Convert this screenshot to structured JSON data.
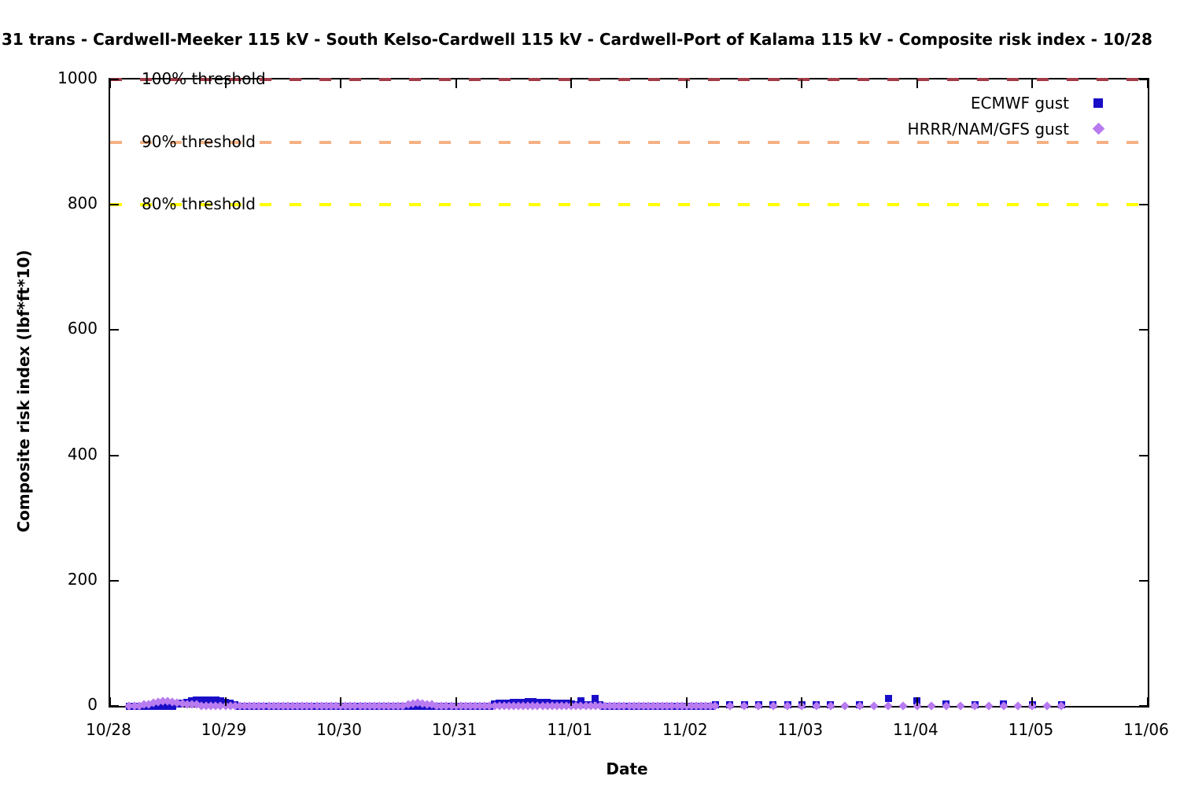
{
  "title": "31 trans - Cardwell-Meeker 115 kV - South Kelso-Cardwell 115 kV - Cardwell-Port of Kalama 115 kV - Composite risk index - 10/28",
  "colors": {
    "axis": "#000000",
    "threshold_100": "#A33B47",
    "threshold_90": "#F5B183",
    "threshold_80": "#FFFF00",
    "ecmwf": "#1A0DC8",
    "hrrr": "#B87BF0"
  },
  "chart_data": {
    "type": "scatter",
    "title": "31 trans - Cardwell-Meeker 115 kV - South Kelso-Cardwell 115 kV - Cardwell-Port of Kalama 115 kV - Composite risk index - 10/28",
    "xlabel": "Date",
    "ylabel": "Composite risk index (lbf*ft*10)",
    "x_tick_labels": [
      "10/28",
      "10/29",
      "10/30",
      "10/31",
      "11/01",
      "11/02",
      "11/03",
      "11/04",
      "11/05",
      "11/06"
    ],
    "y_tick_labels": [
      "0",
      "200",
      "400",
      "600",
      "800",
      "1000"
    ],
    "y_tick_values": [
      0,
      200,
      400,
      600,
      800,
      1000
    ],
    "ylim": [
      0,
      1000
    ],
    "x_range_hours": [
      0,
      216
    ],
    "grid": false,
    "legend_position": "top-right-inside",
    "thresholds": [
      {
        "label": "100% threshold",
        "value": 1000,
        "color": "#A33B47"
      },
      {
        "label": "90% threshold",
        "value": 900,
        "color": "#F5B183"
      },
      {
        "label": "80% threshold",
        "value": 800,
        "color": "#FFFF00"
      }
    ],
    "series": [
      {
        "name": "ECMWF gust",
        "marker": "square",
        "color": "#1A0DC8",
        "x_unit": "hours_after_10/28_00:00",
        "points": [
          [
            4,
            0
          ],
          [
            5,
            0
          ],
          [
            6,
            0
          ],
          [
            7,
            0
          ],
          [
            8,
            0
          ],
          [
            9,
            0
          ],
          [
            10,
            0
          ],
          [
            11,
            0
          ],
          [
            12,
            0
          ],
          [
            13,
            0
          ],
          [
            14,
            3
          ],
          [
            15,
            5
          ],
          [
            16,
            6
          ],
          [
            17,
            8
          ],
          [
            18,
            9
          ],
          [
            19,
            10
          ],
          [
            20,
            10
          ],
          [
            21,
            10
          ],
          [
            22,
            9
          ],
          [
            23,
            8
          ],
          [
            24,
            6
          ],
          [
            25,
            4
          ],
          [
            26,
            2
          ],
          [
            27,
            0
          ],
          [
            28,
            0
          ],
          [
            29,
            0
          ],
          [
            30,
            0
          ],
          [
            31,
            0
          ],
          [
            32,
            0
          ],
          [
            33,
            0
          ],
          [
            34,
            0
          ],
          [
            35,
            0
          ],
          [
            36,
            0
          ],
          [
            37,
            0
          ],
          [
            38,
            0
          ],
          [
            39,
            0
          ],
          [
            40,
            0
          ],
          [
            41,
            0
          ],
          [
            42,
            0
          ],
          [
            43,
            0
          ],
          [
            44,
            0
          ],
          [
            45,
            0
          ],
          [
            46,
            0
          ],
          [
            47,
            0
          ],
          [
            48,
            0
          ],
          [
            49,
            0
          ],
          [
            50,
            0
          ],
          [
            51,
            0
          ],
          [
            52,
            0
          ],
          [
            53,
            0
          ],
          [
            54,
            0
          ],
          [
            55,
            0
          ],
          [
            56,
            0
          ],
          [
            57,
            0
          ],
          [
            58,
            0
          ],
          [
            59,
            0
          ],
          [
            60,
            0
          ],
          [
            61,
            0
          ],
          [
            62,
            0
          ],
          [
            63,
            0
          ],
          [
            64,
            0
          ],
          [
            65,
            0
          ],
          [
            66,
            0
          ],
          [
            67,
            0
          ],
          [
            68,
            0
          ],
          [
            69,
            0
          ],
          [
            70,
            0
          ],
          [
            71,
            0
          ],
          [
            72,
            0
          ],
          [
            73,
            0
          ],
          [
            74,
            0
          ],
          [
            75,
            0
          ],
          [
            76,
            0
          ],
          [
            77,
            0
          ],
          [
            78,
            0
          ],
          [
            79,
            0
          ],
          [
            80,
            3
          ],
          [
            81,
            4
          ],
          [
            82,
            5
          ],
          [
            83,
            5
          ],
          [
            84,
            6
          ],
          [
            85,
            6
          ],
          [
            86,
            6
          ],
          [
            87,
            7
          ],
          [
            88,
            7
          ],
          [
            89,
            6
          ],
          [
            90,
            6
          ],
          [
            91,
            6
          ],
          [
            92,
            5
          ],
          [
            93,
            5
          ],
          [
            94,
            5
          ],
          [
            95,
            4
          ],
          [
            96,
            3
          ],
          [
            97,
            2
          ],
          [
            98,
            8
          ],
          [
            99,
            2
          ],
          [
            100,
            2
          ],
          [
            101,
            12
          ],
          [
            102,
            2
          ],
          [
            103,
            0
          ],
          [
            104,
            0
          ],
          [
            105,
            0
          ],
          [
            106,
            0
          ],
          [
            107,
            0
          ],
          [
            108,
            0
          ],
          [
            109,
            0
          ],
          [
            110,
            0
          ],
          [
            111,
            0
          ],
          [
            112,
            0
          ],
          [
            113,
            0
          ],
          [
            114,
            0
          ],
          [
            115,
            0
          ],
          [
            116,
            0
          ],
          [
            117,
            0
          ],
          [
            118,
            0
          ],
          [
            119,
            0
          ],
          [
            120,
            0
          ],
          [
            121,
            0
          ],
          [
            122,
            0
          ],
          [
            123,
            0
          ],
          [
            124,
            0
          ],
          [
            125,
            0
          ],
          [
            126,
            2
          ],
          [
            129,
            2
          ],
          [
            132,
            2
          ],
          [
            135,
            2
          ],
          [
            138,
            2
          ],
          [
            141,
            2
          ],
          [
            144,
            2
          ],
          [
            147,
            2
          ],
          [
            150,
            2
          ],
          [
            156,
            2
          ],
          [
            162,
            12
          ],
          [
            168,
            8
          ],
          [
            174,
            3
          ],
          [
            180,
            2
          ],
          [
            186,
            3
          ],
          [
            192,
            2
          ],
          [
            198,
            2
          ]
        ]
      },
      {
        "name": "HRRR/NAM/GFS gust",
        "marker": "diamond",
        "color": "#B87BF0",
        "x_unit": "hours_after_10/28_00:00",
        "points": [
          [
            4,
            0
          ],
          [
            5,
            0
          ],
          [
            6,
            0
          ],
          [
            7,
            2
          ],
          [
            8,
            3
          ],
          [
            9,
            5
          ],
          [
            10,
            6
          ],
          [
            11,
            7
          ],
          [
            12,
            7
          ],
          [
            13,
            6
          ],
          [
            14,
            5
          ],
          [
            15,
            4
          ],
          [
            16,
            3
          ],
          [
            17,
            2
          ],
          [
            18,
            2
          ],
          [
            19,
            0
          ],
          [
            20,
            0
          ],
          [
            21,
            0
          ],
          [
            22,
            0
          ],
          [
            23,
            0
          ],
          [
            24,
            0
          ],
          [
            25,
            0
          ],
          [
            26,
            0
          ],
          [
            27,
            0
          ],
          [
            28,
            0
          ],
          [
            29,
            0
          ],
          [
            30,
            0
          ],
          [
            31,
            0
          ],
          [
            32,
            0
          ],
          [
            33,
            0
          ],
          [
            34,
            0
          ],
          [
            35,
            0
          ],
          [
            36,
            0
          ],
          [
            37,
            0
          ],
          [
            38,
            0
          ],
          [
            39,
            0
          ],
          [
            40,
            0
          ],
          [
            41,
            0
          ],
          [
            42,
            0
          ],
          [
            43,
            0
          ],
          [
            44,
            0
          ],
          [
            45,
            0
          ],
          [
            46,
            0
          ],
          [
            47,
            0
          ],
          [
            48,
            0
          ],
          [
            49,
            0
          ],
          [
            50,
            0
          ],
          [
            51,
            0
          ],
          [
            52,
            0
          ],
          [
            53,
            0
          ],
          [
            54,
            0
          ],
          [
            55,
            0
          ],
          [
            56,
            0
          ],
          [
            57,
            0
          ],
          [
            58,
            0
          ],
          [
            59,
            0
          ],
          [
            60,
            0
          ],
          [
            61,
            0
          ],
          [
            62,
            2
          ],
          [
            63,
            4
          ],
          [
            64,
            5
          ],
          [
            65,
            4
          ],
          [
            66,
            3
          ],
          [
            67,
            2
          ],
          [
            68,
            0
          ],
          [
            69,
            0
          ],
          [
            70,
            0
          ],
          [
            71,
            0
          ],
          [
            72,
            0
          ],
          [
            73,
            0
          ],
          [
            74,
            0
          ],
          [
            75,
            0
          ],
          [
            76,
            0
          ],
          [
            77,
            0
          ],
          [
            78,
            0
          ],
          [
            79,
            0
          ],
          [
            80,
            0
          ],
          [
            81,
            0
          ],
          [
            82,
            0
          ],
          [
            83,
            0
          ],
          [
            84,
            0
          ],
          [
            85,
            0
          ],
          [
            86,
            0
          ],
          [
            87,
            0
          ],
          [
            88,
            0
          ],
          [
            89,
            0
          ],
          [
            90,
            0
          ],
          [
            91,
            0
          ],
          [
            92,
            0
          ],
          [
            93,
            0
          ],
          [
            94,
            0
          ],
          [
            95,
            0
          ],
          [
            96,
            0
          ],
          [
            97,
            0
          ],
          [
            98,
            0
          ],
          [
            99,
            0
          ],
          [
            100,
            0
          ],
          [
            101,
            0
          ],
          [
            102,
            0
          ],
          [
            103,
            0
          ],
          [
            104,
            0
          ],
          [
            105,
            0
          ],
          [
            106,
            0
          ],
          [
            107,
            0
          ],
          [
            108,
            0
          ],
          [
            109,
            0
          ],
          [
            110,
            0
          ],
          [
            111,
            0
          ],
          [
            112,
            0
          ],
          [
            113,
            0
          ],
          [
            114,
            0
          ],
          [
            115,
            0
          ],
          [
            116,
            0
          ],
          [
            117,
            0
          ],
          [
            118,
            0
          ],
          [
            119,
            0
          ],
          [
            120,
            0
          ],
          [
            121,
            0
          ],
          [
            122,
            0
          ],
          [
            123,
            0
          ],
          [
            124,
            0
          ],
          [
            125,
            0
          ],
          [
            126,
            0
          ],
          [
            129,
            0
          ],
          [
            132,
            0
          ],
          [
            135,
            0
          ],
          [
            138,
            0
          ],
          [
            141,
            0
          ],
          [
            144,
            0
          ],
          [
            147,
            0
          ],
          [
            150,
            0
          ],
          [
            153,
            0
          ],
          [
            156,
            0
          ],
          [
            159,
            0
          ],
          [
            162,
            0
          ],
          [
            165,
            0
          ],
          [
            168,
            0
          ],
          [
            171,
            0
          ],
          [
            174,
            0
          ],
          [
            177,
            0
          ],
          [
            180,
            0
          ],
          [
            183,
            0
          ],
          [
            186,
            0
          ],
          [
            189,
            0
          ],
          [
            192,
            0
          ],
          [
            195,
            0
          ],
          [
            198,
            0
          ]
        ]
      }
    ]
  },
  "legend": {
    "ecmwf_label": "ECMWF gust",
    "hrrr_label": "HRRR/NAM/GFS gust"
  }
}
